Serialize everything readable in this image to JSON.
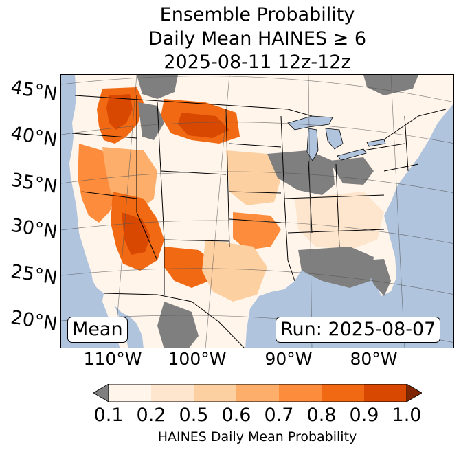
{
  "title": {
    "line1": "Ensemble Probability",
    "line2": "Daily Mean HAINES ≥ 6",
    "line3": "2025-08-11 12z-12z"
  },
  "map": {
    "region": "Continental United States",
    "latitude_labels": [
      "45°N",
      "40°N",
      "35°N",
      "30°N",
      "25°N",
      "20°N"
    ],
    "longitude_labels": [
      "110°W",
      "100°W",
      "90°W",
      "80°W"
    ],
    "stat_label": "Mean",
    "run_label": "Run: 2025-08-07",
    "colors": {
      "ocean": "#b0c4de",
      "no_data": "#7f7f7f",
      "borders": "#000000"
    }
  },
  "colorbar": {
    "label": "HAINES Daily Mean Probability",
    "ticks": [
      "0.1",
      "0.2",
      "0.5",
      "0.6",
      "0.7",
      "0.8",
      "0.9",
      "1.0"
    ],
    "colors": [
      "#fff5eb",
      "#fee6ce",
      "#fdd0a2",
      "#fdae6b",
      "#fd8d3c",
      "#f16913",
      "#d94801"
    ],
    "under_color": "#7f7f7f",
    "over_color": "#7f2704"
  }
}
